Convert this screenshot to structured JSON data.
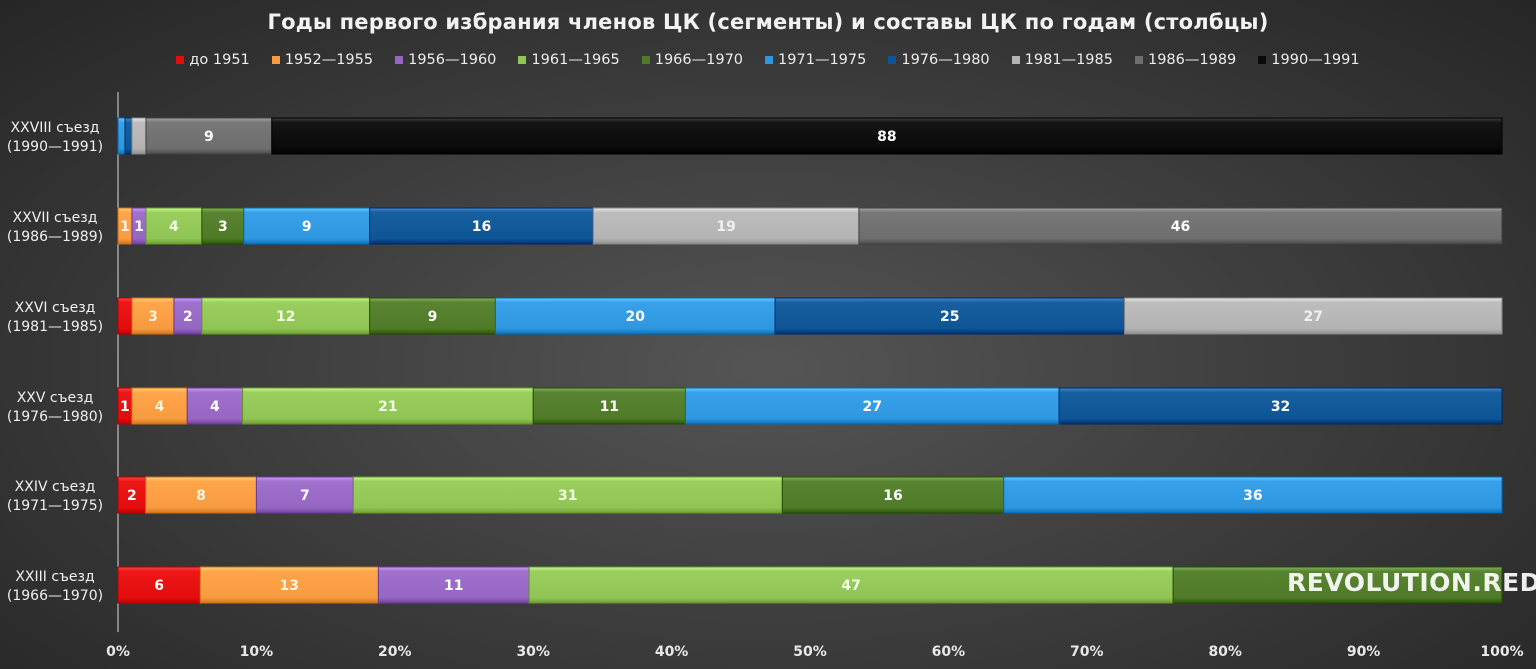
{
  "chart_data": {
    "type": "bar",
    "orientation": "horizontal",
    "stacked": "percent",
    "title": "Годы первого избрания членов ЦК (сегменты) и составы ЦК по годам (столбцы)",
    "legend_position": "top",
    "x_tick_labels": [
      "0%",
      "10%",
      "20%",
      "30%",
      "40%",
      "50%",
      "60%",
      "70%",
      "80%",
      "90%",
      "100%"
    ],
    "xlim": [
      0,
      100
    ],
    "categories": [
      "XXVIII съезд\n(1990—1991)",
      "XXVII съезд\n(1986—1989)",
      "XXVI съезд\n(1981—1985)",
      "XXV съезд\n(1976—1980)",
      "XXIV съезд\n(1971—1975)",
      "XXIII съезд\n(1966—1970)"
    ],
    "series": [
      {
        "name": "до 1951",
        "color": "#e30d0d",
        "values": [
          0,
          0,
          1,
          1,
          2,
          6
        ]
      },
      {
        "name": "1952—1955",
        "color": "#f79b40",
        "values": [
          0,
          1,
          3,
          4,
          8,
          13
        ]
      },
      {
        "name": "1956—1960",
        "color": "#9666c3",
        "values": [
          0,
          1,
          2,
          4,
          7,
          11
        ]
      },
      {
        "name": "1961—1965",
        "color": "#90c454",
        "values": [
          0,
          4,
          12,
          21,
          31,
          47
        ]
      },
      {
        "name": "1966—1970",
        "color": "#4f7a28",
        "values": [
          0,
          3,
          9,
          11,
          16,
          24
        ]
      },
      {
        "name": "1971—1975",
        "color": "#2f97e0",
        "values": [
          0.5,
          9,
          20,
          27,
          36,
          0
        ]
      },
      {
        "name": "1976—1980",
        "color": "#0d5595",
        "values": [
          0.5,
          16,
          25,
          32,
          0,
          0
        ]
      },
      {
        "name": "1981—1985",
        "color": "#b3b3b3",
        "values": [
          1,
          19,
          27,
          0,
          0,
          0
        ]
      },
      {
        "name": "1986—1989",
        "color": "#6e6e6e",
        "values": [
          9,
          46,
          0,
          0,
          0,
          0
        ]
      },
      {
        "name": "1990—1991",
        "color": "#0a0a0a",
        "values": [
          88,
          0,
          0,
          0,
          0,
          0
        ]
      }
    ],
    "data_labels": [
      [
        "",
        "",
        "",
        "",
        "",
        "",
        "",
        "",
        "9",
        "88"
      ],
      [
        "",
        "1",
        "1",
        "4",
        "3",
        "9",
        "16",
        "19",
        "46",
        ""
      ],
      [
        "",
        "3",
        "2",
        "12",
        "9",
        "20",
        "25",
        "27",
        "",
        ""
      ],
      [
        "1",
        "4",
        "4",
        "21",
        "11",
        "27",
        "32",
        "",
        "",
        ""
      ],
      [
        "2",
        "8",
        "7",
        "31",
        "16",
        "36",
        "",
        "",
        "",
        ""
      ],
      [
        "6",
        "13",
        "11",
        "47",
        "",
        "",
        "",
        "",
        "",
        ""
      ]
    ],
    "label_colors": [
      "#ffffff",
      "#fff3e0",
      "#ffffff",
      "#f2ffe6",
      "#ffffff",
      "#ffffff",
      "#ffffff",
      "#f0f0f0",
      "#ffffff",
      "#ffffff"
    ]
  },
  "watermark": "REVOLUTION.RED"
}
